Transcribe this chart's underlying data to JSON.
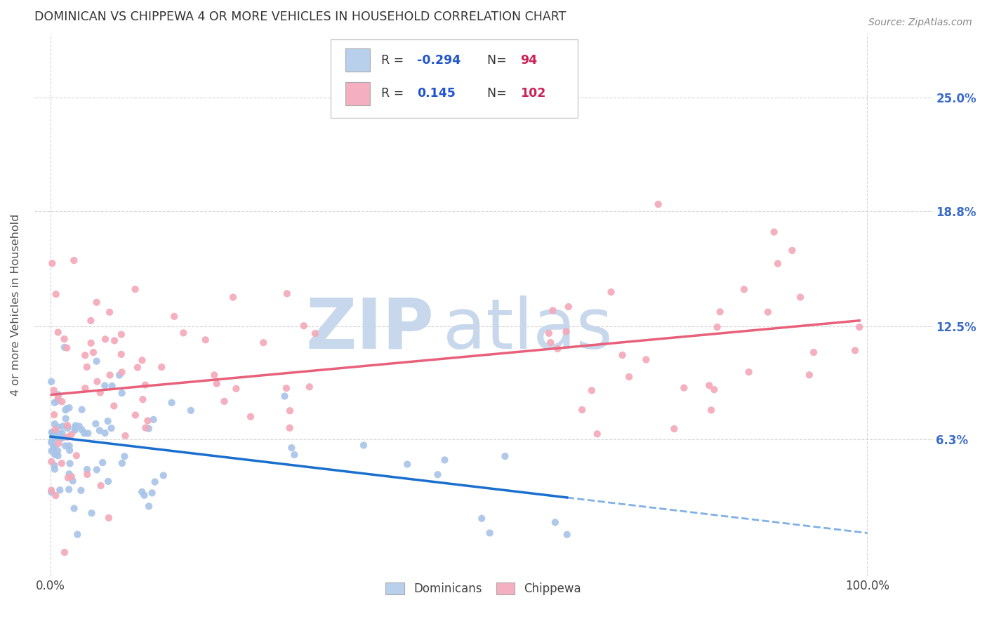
{
  "title": "DOMINICAN VS CHIPPEWA 4 OR MORE VEHICLES IN HOUSEHOLD CORRELATION CHART",
  "source": "Source: ZipAtlas.com",
  "ylabel": "4 or more Vehicles in Household",
  "ytick_labels": [
    "6.3%",
    "12.5%",
    "18.8%",
    "25.0%"
  ],
  "ytick_values": [
    0.063,
    0.125,
    0.188,
    0.25
  ],
  "xtick_show": [
    0.0,
    1.0
  ],
  "xtick_labels": [
    "0.0%",
    "100.0%"
  ],
  "xlim": [
    -0.02,
    1.08
  ],
  "ylim": [
    -0.012,
    0.285
  ],
  "dominicans_R": -0.294,
  "dominicans_N": 94,
  "chippewa_R": 0.145,
  "chippewa_N": 102,
  "dot_color_dominicans": "#a8c4e8",
  "dot_color_chippewa": "#f4a8b8",
  "line_color_dominicans": "#1a6fce",
  "line_color_chippewa": "#e8607a",
  "legend_box_color_dominicans": "#b8d0ec",
  "legend_box_color_chippewa": "#f4b0c0",
  "watermark_zip": "ZIP",
  "watermark_atlas": "atlas",
  "watermark_color": "#c8d8ec",
  "background_color": "#ffffff",
  "grid_color": "#cccccc",
  "title_color": "#333333",
  "label_color": "#555555",
  "tick_label_color_x": "#444444",
  "tick_label_color_y": "#3a6bc9",
  "legend_R_color": "#2255cc",
  "legend_N_color": "#cc2255"
}
